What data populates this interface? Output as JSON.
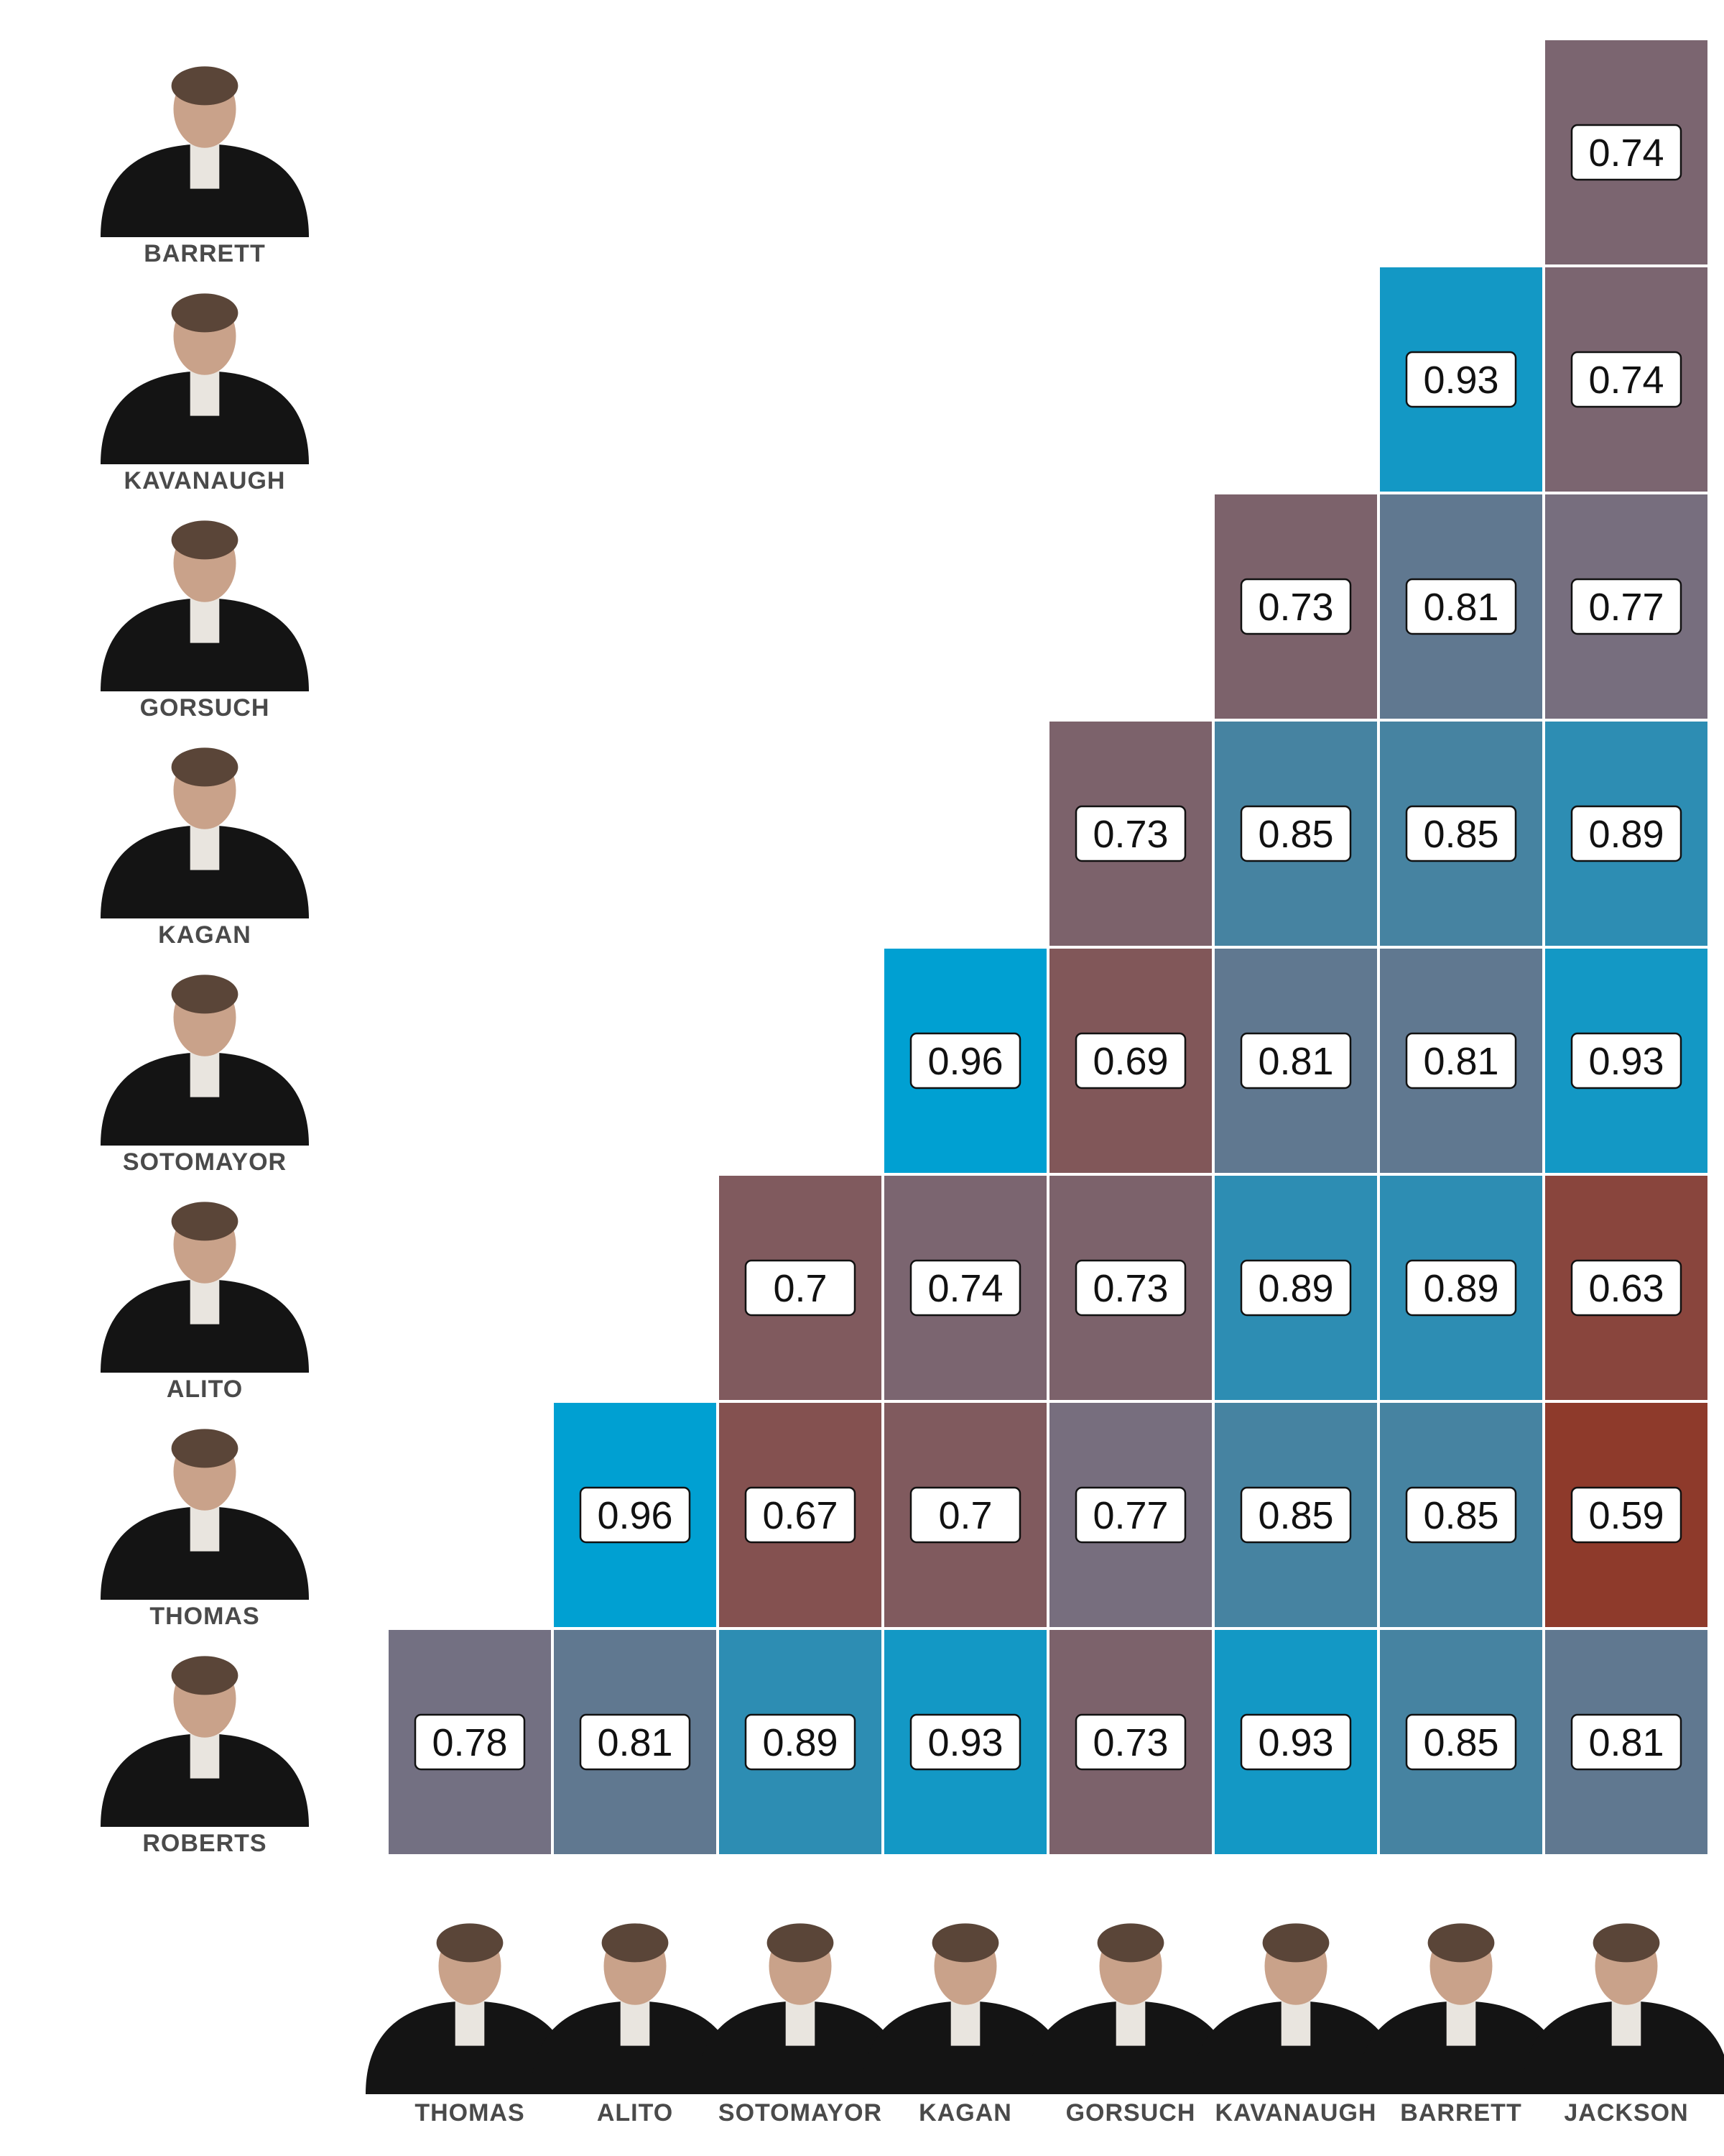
{
  "chart_data": {
    "type": "heatmap",
    "rows": [
      "BARRETT",
      "KAVANAUGH",
      "GORSUCH",
      "KAGAN",
      "SOTOMAYOR",
      "ALITO",
      "THOMAS",
      "ROBERTS"
    ],
    "columns": [
      "THOMAS",
      "ALITO",
      "SOTOMAYOR",
      "KAGAN",
      "GORSUCH",
      "KAVANAUGH",
      "BARRETT",
      "JACKSON"
    ],
    "values": [
      [
        null,
        null,
        null,
        null,
        null,
        null,
        null,
        0.74
      ],
      [
        null,
        null,
        null,
        null,
        null,
        null,
        0.93,
        0.74
      ],
      [
        null,
        null,
        null,
        null,
        null,
        0.73,
        0.81,
        0.77
      ],
      [
        null,
        null,
        null,
        null,
        0.73,
        0.85,
        0.85,
        0.89
      ],
      [
        null,
        null,
        null,
        0.96,
        0.69,
        0.81,
        0.81,
        0.93
      ],
      [
        null,
        null,
        0.7,
        0.74,
        0.73,
        0.89,
        0.89,
        0.63
      ],
      [
        null,
        0.96,
        0.67,
        0.7,
        0.77,
        0.85,
        0.85,
        0.59
      ],
      [
        0.78,
        0.81,
        0.89,
        0.93,
        0.73,
        0.93,
        0.85,
        0.81
      ]
    ],
    "value_labels": [
      [
        null,
        null,
        null,
        null,
        null,
        null,
        null,
        "0.74"
      ],
      [
        null,
        null,
        null,
        null,
        null,
        null,
        "0.93",
        "0.74"
      ],
      [
        null,
        null,
        null,
        null,
        null,
        "0.73",
        "0.81",
        "0.77"
      ],
      [
        null,
        null,
        null,
        null,
        "0.73",
        "0.85",
        "0.85",
        "0.89"
      ],
      [
        null,
        null,
        null,
        "0.96",
        "0.69",
        "0.81",
        "0.81",
        "0.93"
      ],
      [
        null,
        null,
        "0.7",
        "0.74",
        "0.73",
        "0.89",
        "0.89",
        "0.63"
      ],
      [
        null,
        "0.96",
        "0.67",
        "0.7",
        "0.77",
        "0.85",
        "0.85",
        "0.59"
      ],
      [
        "0.78",
        "0.81",
        "0.89",
        "0.93",
        "0.73",
        "0.93",
        "0.85",
        "0.81"
      ]
    ],
    "color_scale": {
      "low_value": 0.59,
      "high_value": 0.96,
      "low_color": "#8e3a2b",
      "mid_color": "#766f80",
      "high_color": "#00a0d2"
    },
    "title": "",
    "xlabel": "",
    "ylabel": "",
    "grid": false,
    "legend": "none"
  },
  "colors": {
    "empty_background": "#ffffff",
    "cell_border": "#ffffff",
    "label_box_fill": "#ffffff",
    "label_box_stroke": "#111111",
    "name_text": "#4a4a4a",
    "photo_robe": "#141414"
  }
}
